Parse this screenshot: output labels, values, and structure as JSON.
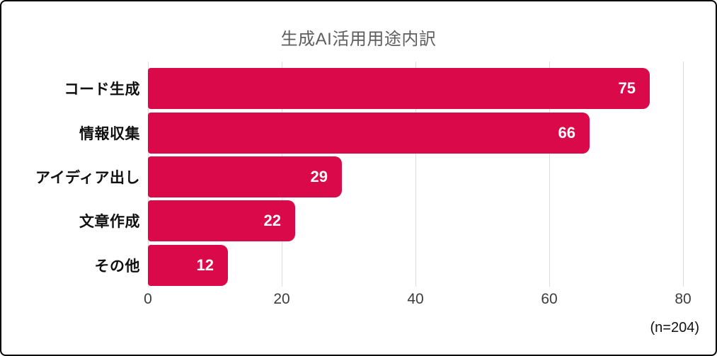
{
  "frame": {
    "background": "#ffffff",
    "border_color": "#000000"
  },
  "chart_data": {
    "type": "bar",
    "orientation": "horizontal",
    "title": "生成AI活用用途内訳",
    "title_color": "#5e5e5e",
    "categories": [
      "コード生成",
      "情報収集",
      "アイディア出し",
      "文章作成",
      "その他"
    ],
    "values": [
      75,
      66,
      29,
      22,
      12
    ],
    "x_ticks": [
      0,
      20,
      40,
      60,
      80
    ],
    "xlim": [
      0,
      80
    ],
    "bar_color": "#d9094a",
    "value_label_color": "#ffffff",
    "gridline_color": "#dcdcdc",
    "grid": true,
    "legend": "none",
    "annotation": "(n=204)"
  }
}
